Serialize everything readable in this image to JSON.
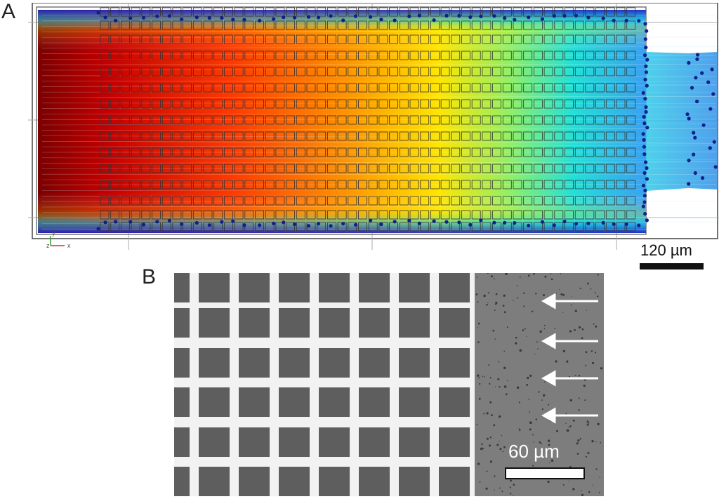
{
  "panels": {
    "a": {
      "label": "A",
      "scale_text": "120 µm",
      "axis_x": "x",
      "axis_z": "z",
      "axis_y": "y"
    },
    "b": {
      "label": "B",
      "scale_text": "60 µm"
    }
  }
}
